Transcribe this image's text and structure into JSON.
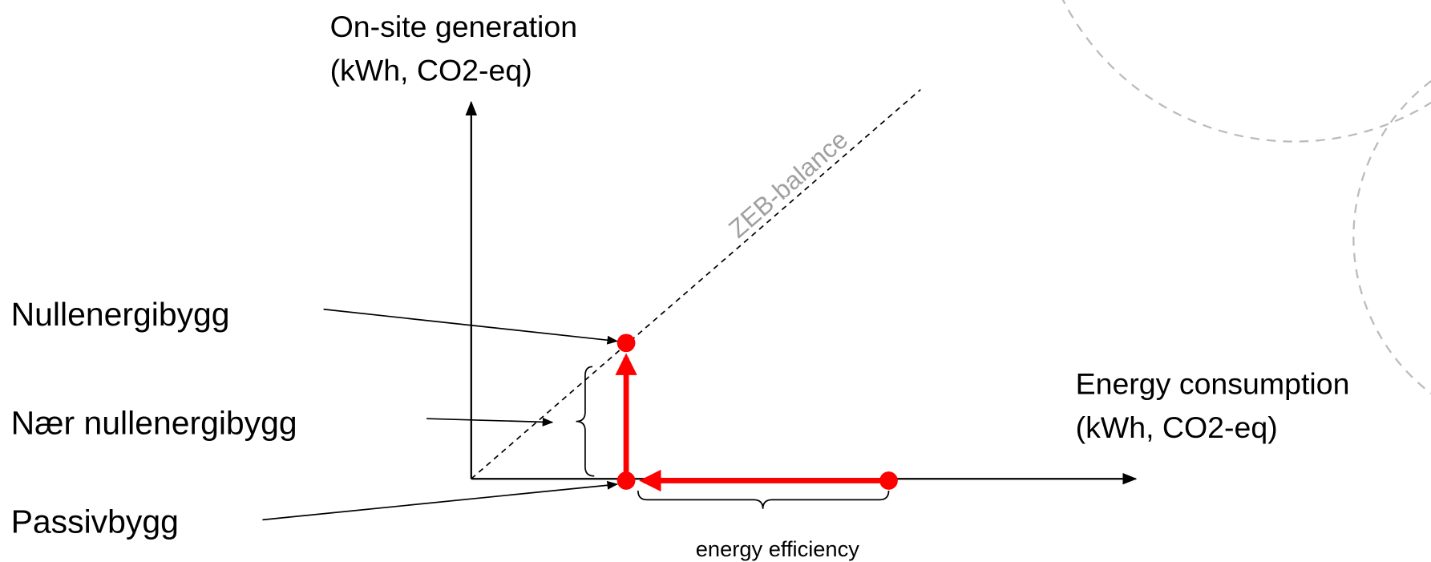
{
  "y_axis": {
    "label": [
      "On-site generation",
      "(kWh, CO2-eq)"
    ]
  },
  "x_axis": {
    "label": [
      "Energy consumption",
      "(kWh, CO2-eq)"
    ]
  },
  "diagonal_label": "ZEB-balance",
  "levels": [
    {
      "label": "Nullenergibygg"
    },
    {
      "label": "Nær nullenergibygg"
    },
    {
      "label": "Passivbygg"
    }
  ],
  "annotation": "energy efficiency"
}
